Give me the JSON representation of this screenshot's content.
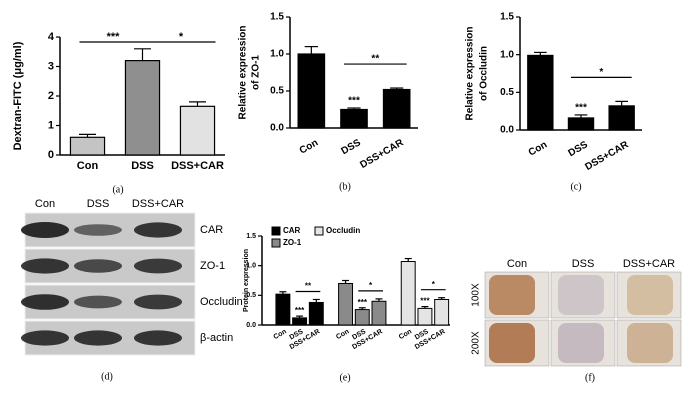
{
  "chart_data": [
    {
      "type": "bar",
      "y_label": [
        "Dextran-FITC (μg/ml)"
      ],
      "categories": [
        "Con",
        "DSS",
        "DSS+CAR"
      ],
      "values": [
        0.6,
        3.2,
        1.65
      ],
      "errors": [
        0.1,
        0.4,
        0.15
      ],
      "colors": [
        "#c4c4c4",
        "#8f8f8f",
        "#e2e2e2"
      ],
      "ylim": [
        0,
        4
      ],
      "yticks": [
        0,
        1,
        2,
        3,
        4
      ],
      "annotations": [
        "***",
        "*"
      ],
      "panel_label": "(a)"
    },
    {
      "type": "bar",
      "y_label": [
        "Relative expression",
        "of ZO-1"
      ],
      "categories": [
        "Con",
        "DSS",
        "DSS+CAR"
      ],
      "values": [
        1.0,
        0.25,
        0.52
      ],
      "errors": [
        0.1,
        0.02,
        0.02
      ],
      "colors": [
        "#000000",
        "#000000",
        "#000000"
      ],
      "ylim": [
        0,
        1.5
      ],
      "yticks": [
        {
          "value": 0,
          "label": "0.0"
        },
        {
          "value": 0.5,
          "label": "0.5"
        },
        {
          "value": 1,
          "label": "1.0"
        },
        {
          "value": 1.5,
          "label": "1.5"
        }
      ],
      "annotations": [
        "***",
        "**"
      ],
      "panel_label": "(b)"
    },
    {
      "type": "bar",
      "y_label": [
        "Relative expression",
        "of Occludin"
      ],
      "categories": [
        "Con",
        "DSS",
        "DSS+CAR"
      ],
      "values": [
        0.99,
        0.16,
        0.32
      ],
      "errors": [
        0.04,
        0.04,
        0.06
      ],
      "colors": [
        "#000000",
        "#000000",
        "#000000"
      ],
      "ylim": [
        0,
        1.5
      ],
      "yticks": [
        {
          "value": 0,
          "label": "0.0"
        },
        {
          "value": 0.5,
          "label": "0.5"
        },
        {
          "value": 1,
          "label": "1.0"
        },
        {
          "value": 1.5,
          "label": "1.5"
        }
      ],
      "annotations": [
        "***",
        "*"
      ],
      "panel_label": "(c)"
    },
    {
      "type": "grouped-bar",
      "y_label": [
        "Protein expression"
      ],
      "categories": [
        "Con",
        "DSS",
        "DSS+CAR"
      ],
      "series": [
        {
          "name": "CAR",
          "color": "#000000",
          "values": [
            0.52,
            0.12,
            0.38
          ],
          "errors": [
            0.04,
            0.03,
            0.05
          ],
          "annotations": [
            "***",
            "**"
          ]
        },
        {
          "name": "ZO-1",
          "color": "#8a8a8a",
          "values": [
            0.7,
            0.26,
            0.4
          ],
          "errors": [
            0.05,
            0.03,
            0.04
          ],
          "annotations": [
            "***",
            "*"
          ]
        },
        {
          "name": "Occludin",
          "color": "#e4e4e4",
          "values": [
            1.07,
            0.28,
            0.43
          ],
          "errors": [
            0.05,
            0.03,
            0.03
          ],
          "annotations": [
            "***",
            "*"
          ]
        }
      ],
      "ylim": [
        0,
        1.5
      ],
      "yticks": [
        {
          "value": 0,
          "label": "0.0"
        },
        {
          "value": 0.5,
          "label": "0.5"
        },
        {
          "value": 1,
          "label": "1.0"
        },
        {
          "value": 1.5,
          "label": "1.5"
        }
      ],
      "panel_label": "(e)"
    }
  ],
  "blot": {
    "columns": [
      "Con",
      "DSS",
      "DSS+CAR"
    ],
    "rows": [
      "CAR",
      "ZO-1",
      "Occludin",
      "β-actin"
    ],
    "panel_label": "(d)"
  },
  "histology": {
    "columns": [
      "Con",
      "DSS",
      "DSS+CAR"
    ],
    "rows": [
      "100X",
      "200X"
    ],
    "panel_label": "(f)"
  }
}
